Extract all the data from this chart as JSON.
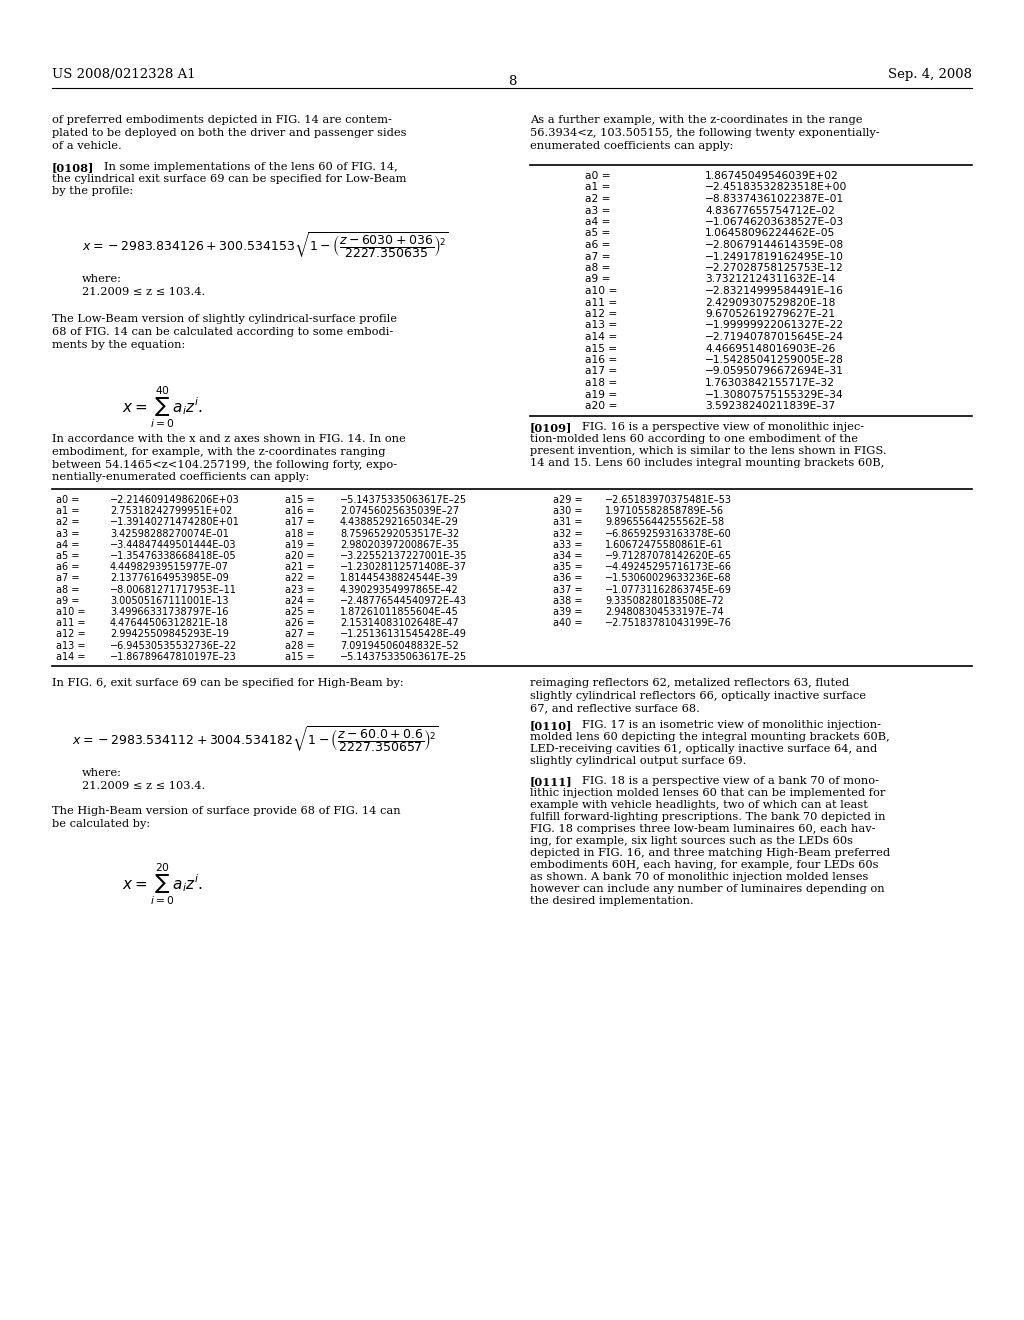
{
  "page_number": "8",
  "patent_number": "US 2008/0212328 A1",
  "patent_date": "Sep. 4, 2008",
  "bg_color": "#ffffff",
  "text_color": "#000000",
  "table1_rows": [
    [
      "a0 =",
      "1.86745049546039E+02"
    ],
    [
      "a1 =",
      "−2.45183532823518E+00"
    ],
    [
      "a2 =",
      "−8.83374361022387E–01"
    ],
    [
      "a3 =",
      "4.83677655754712E–02"
    ],
    [
      "a4 =",
      "−1.06746203638527E–03"
    ],
    [
      "a5 =",
      "1.06458096224462E–05"
    ],
    [
      "a6 =",
      "−2.80679144614359E–08"
    ],
    [
      "a7 =",
      "−1.24917819162495E–10"
    ],
    [
      "a8 =",
      "−2.27028758125753E–12"
    ],
    [
      "a9 =",
      "3.73212124311632E–14"
    ],
    [
      "a10 =",
      "−2.83214999584491E–16"
    ],
    [
      "a11 =",
      "2.42909307529820E–18"
    ],
    [
      "a12 =",
      "9.67052619279627E–21"
    ],
    [
      "a13 =",
      "−1.99999922061327E–22"
    ],
    [
      "a14 =",
      "−2.71940787015645E–24"
    ],
    [
      "a15 =",
      "4.46695148016903E–26"
    ],
    [
      "a16 =",
      "−1.54285041259005E–28"
    ],
    [
      "a17 =",
      "−9.05950796672694E–31"
    ],
    [
      "a18 =",
      "1.76303842155717E–32"
    ],
    [
      "a19 =",
      "−1.30807575155329E–34"
    ],
    [
      "a20 =",
      "3.59238240211839E–37"
    ]
  ],
  "table2_rows": [
    [
      "a0 =",
      "−2.21460914986206E+03",
      "a15 =",
      "−5.14375335063617E–25",
      "a29 =",
      "−2.65183970375481E–53"
    ],
    [
      "a1 =",
      "2.75318242799951E+02",
      "a16 =",
      "2.07456025635039E–27",
      "a30 =",
      "1.97105582858789E–56"
    ],
    [
      "a2 =",
      "−1.39140271474280E+01",
      "a17 =",
      "4.43885292165034E–29",
      "a31 =",
      "9.89655644255562E–58"
    ],
    [
      "a3 =",
      "3.42598288270074E–01",
      "a18 =",
      "8.75965292053517E–32",
      "a32 =",
      "−6.86592593163378E–60"
    ],
    [
      "a4 =",
      "−3.44847449501444E–03",
      "a19 =",
      "2.98020397200867E–35",
      "a33 =",
      "1.60672475580861E–61"
    ],
    [
      "a5 =",
      "−1.35476338668418E–05",
      "a20 =",
      "−3.22552137227001E–35",
      "a34 =",
      "−9.71287078142620E–65"
    ],
    [
      "a6 =",
      "4.44982939515977E–07",
      "a21 =",
      "−1.23028112571408E–37",
      "a35 =",
      "−4.49245295716173E–66"
    ],
    [
      "a7 =",
      "2.13776164953985E–09",
      "a22 =",
      "1.81445438824544E–39",
      "a36 =",
      "−1.53060029633236E–68"
    ],
    [
      "a8 =",
      "−8.00681271717953E–11",
      "a23 =",
      "4.39029354997865E–42",
      "a37 =",
      "−1.07731162863745E–69"
    ],
    [
      "a9 =",
      "3.00505167111001E–13",
      "a24 =",
      "−2.48776544540972E–43",
      "a38 =",
      "9.33508280183508E–72"
    ],
    [
      "a10 =",
      "3.49966331738797E–16",
      "a25 =",
      "1.87261011855604E–45",
      "a39 =",
      "2.94808304533197E–74"
    ],
    [
      "a11 =",
      "4.47644506312821E–18",
      "a26 =",
      "2.15314083102648E–47",
      "a40 =",
      "−2.75183781043199E–76"
    ],
    [
      "a12 =",
      "2.99425509845293E–19",
      "a27 =",
      "−1.25136131545428E–49",
      "",
      ""
    ],
    [
      "a13 =",
      "−6.94530535532736E–22",
      "a28 =",
      "7.09194506048832E–52",
      "",
      ""
    ],
    [
      "a14 =",
      "−1.86789647810197E–23",
      "a15 =",
      "−5.14375335063617E–25",
      "",
      ""
    ]
  ]
}
